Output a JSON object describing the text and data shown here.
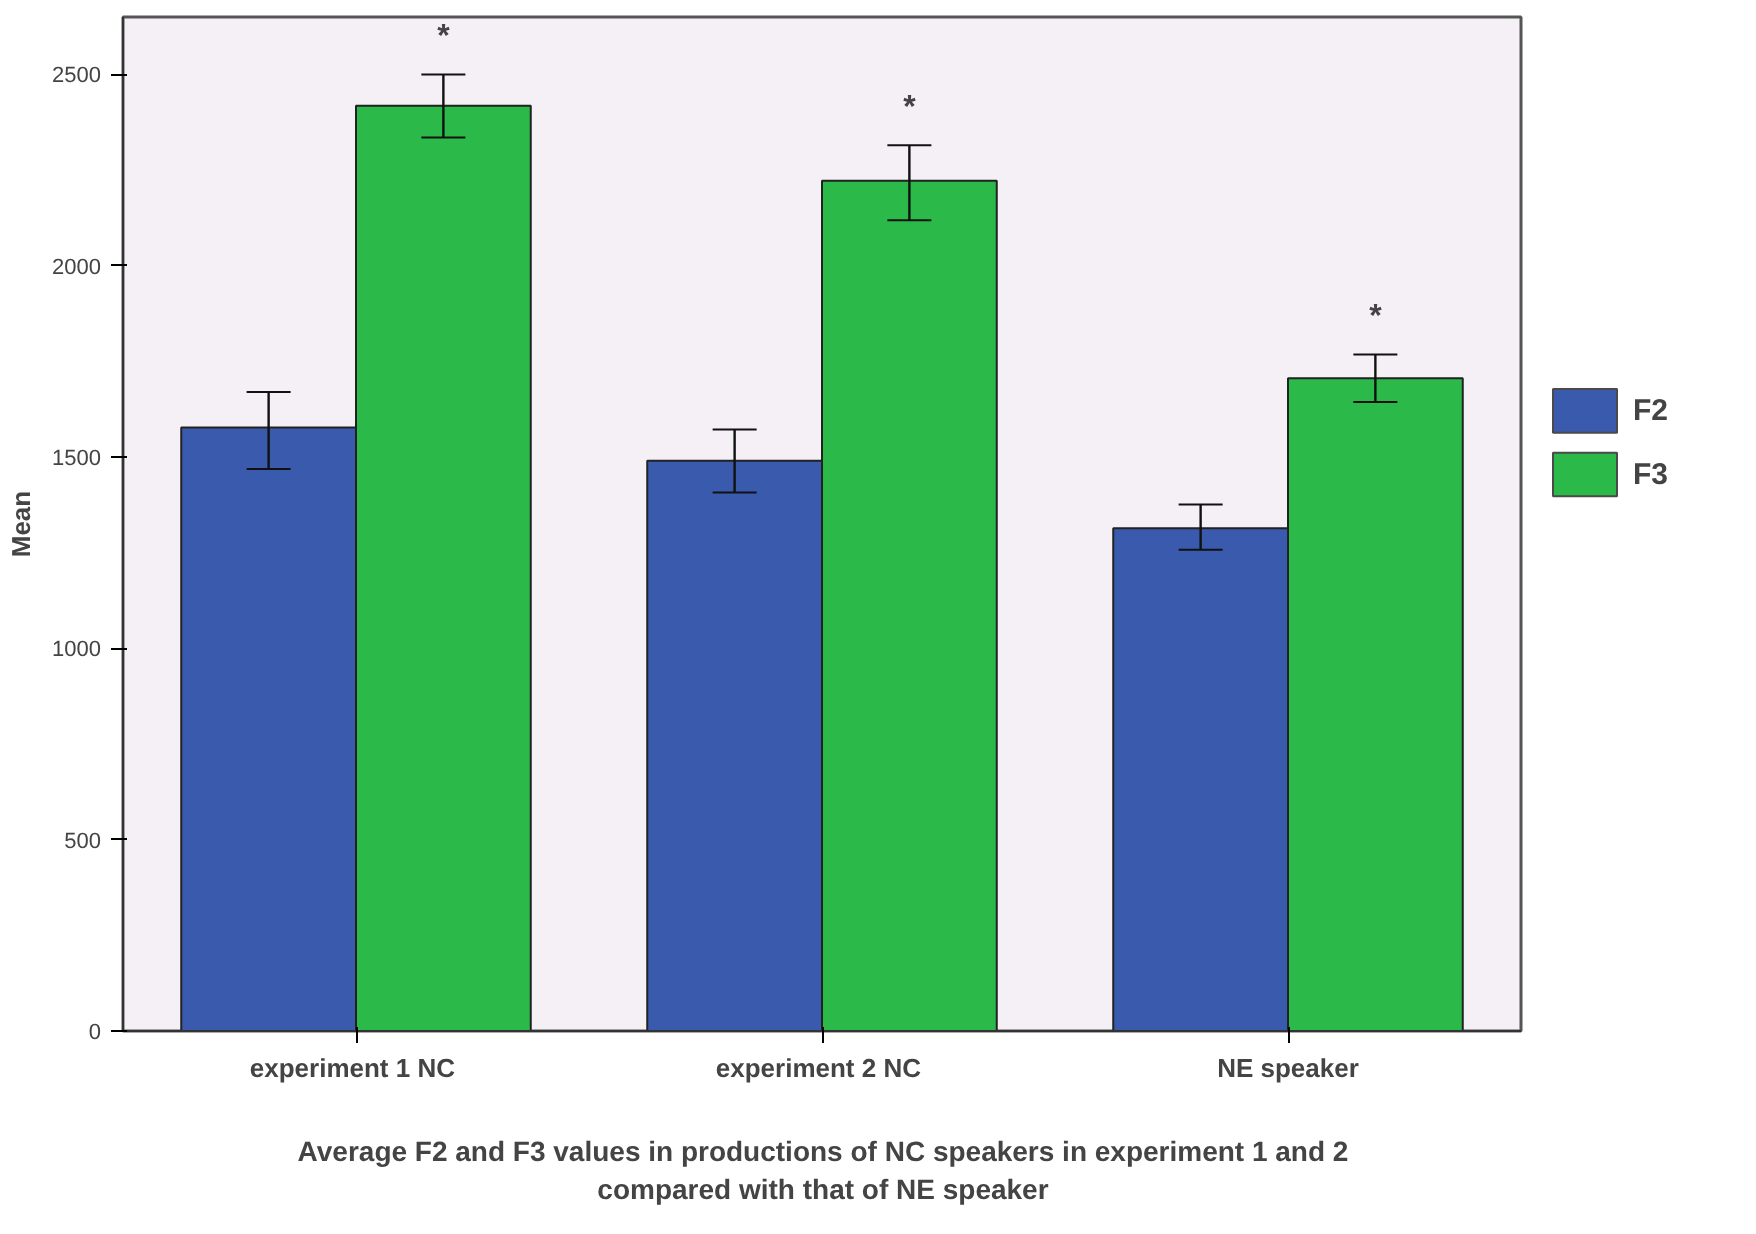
{
  "chart_data": {
    "type": "bar",
    "title": "Average F2 and F3 values in productions of NC speakers in experiment 1 and 2\ncompared with that of NE speaker",
    "ylabel": "Mean",
    "categories": [
      "experiment 1  NC",
      "experiment 2  NC",
      "NE speaker"
    ],
    "series": [
      {
        "name": "F2",
        "color": "#3a5aad",
        "values": [
          1577,
          1490,
          1314
        ],
        "errors": [
          [
            1469,
            1670
          ],
          [
            1407,
            1572
          ],
          [
            1258,
            1376
          ]
        ]
      },
      {
        "name": "F3",
        "color": "#2bba4a",
        "values": [
          2418,
          2222,
          1706
        ],
        "errors": [
          [
            2335,
            2500
          ],
          [
            2119,
            2315
          ],
          [
            1644,
            1768
          ]
        ]
      }
    ],
    "annotations": [
      "*",
      "*",
      "*"
    ],
    "ylim": [
      0,
      2650
    ],
    "yticks": [
      0,
      500,
      1000,
      1500,
      2000,
      2500
    ],
    "grid": false,
    "legend": "right"
  }
}
